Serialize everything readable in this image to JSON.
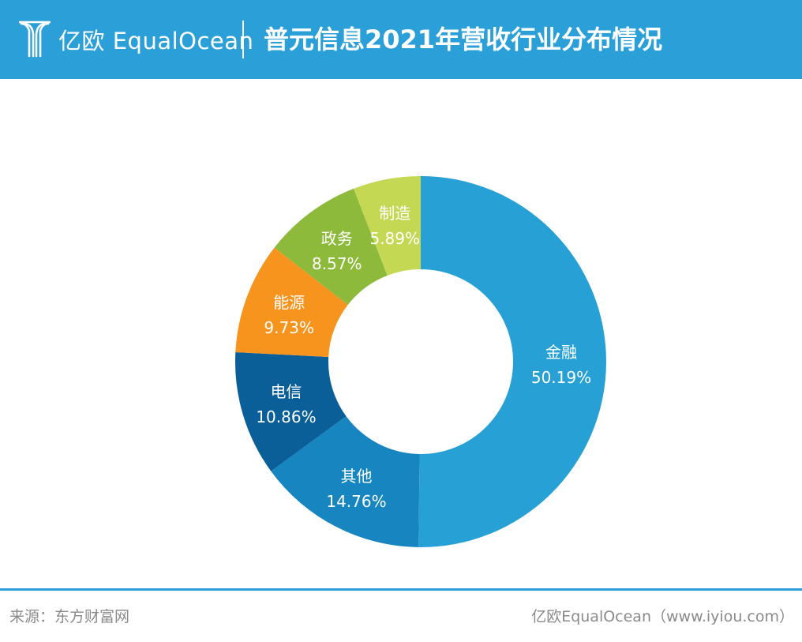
{
  "header": {
    "logo_text": "亿欧 EqualOcean",
    "title": "普元信息2021年营收行业分布情况",
    "background_color": "#2a9fd8"
  },
  "chart_data": {
    "type": "pie",
    "donut": true,
    "title": "普元信息2021年营收行业分布情况",
    "unit": "%",
    "categories": [
      "金融",
      "其他",
      "电信",
      "能源",
      "政务",
      "制造"
    ],
    "values": [
      50.19,
      14.76,
      10.86,
      9.73,
      8.57,
      5.89
    ],
    "labels": [
      "50.19%",
      "14.76%",
      "10.86%",
      "9.73%",
      "8.57%",
      "5.89%"
    ],
    "colors": [
      "#27a0d6",
      "#1685c0",
      "#0b5f99",
      "#f7941e",
      "#8dba3b",
      "#c5d853"
    ],
    "start": "12 o'clock",
    "direction": "clockwise",
    "legend": "none"
  },
  "footer": {
    "source": "来源：东方财富网",
    "credit": "亿欧EqualOcean（www.iyiou.com）",
    "rule_color": "#2a9fd8"
  }
}
